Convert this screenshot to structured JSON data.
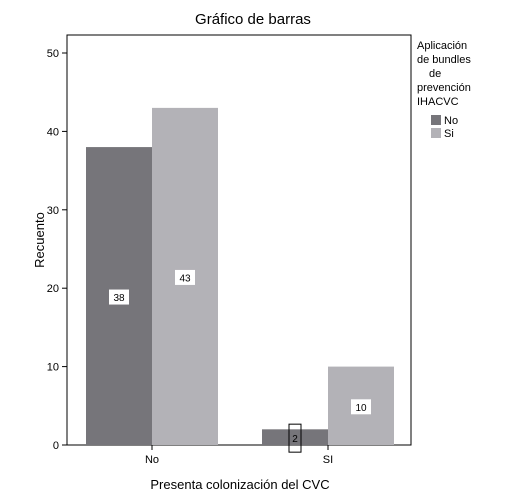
{
  "chart_data": {
    "type": "bar",
    "title": "Gráfico de barras",
    "xlabel": "Presenta colonización del CVC",
    "ylabel": "Recuento",
    "categories": [
      "No",
      "SI"
    ],
    "series": [
      {
        "name": "No",
        "values": [
          38,
          2
        ],
        "color": "#76757a"
      },
      {
        "name": "Si",
        "values": [
          43,
          10
        ],
        "color": "#b3b2b7"
      }
    ],
    "ylim": [
      0,
      50
    ],
    "yticks": [
      0,
      10,
      20,
      30,
      40,
      50
    ],
    "legend": {
      "title_lines": [
        "Aplicación",
        "de bundles",
        "de",
        "prevención",
        "IHACVC"
      ],
      "position": "right"
    },
    "data_labels": true,
    "grid": false
  }
}
